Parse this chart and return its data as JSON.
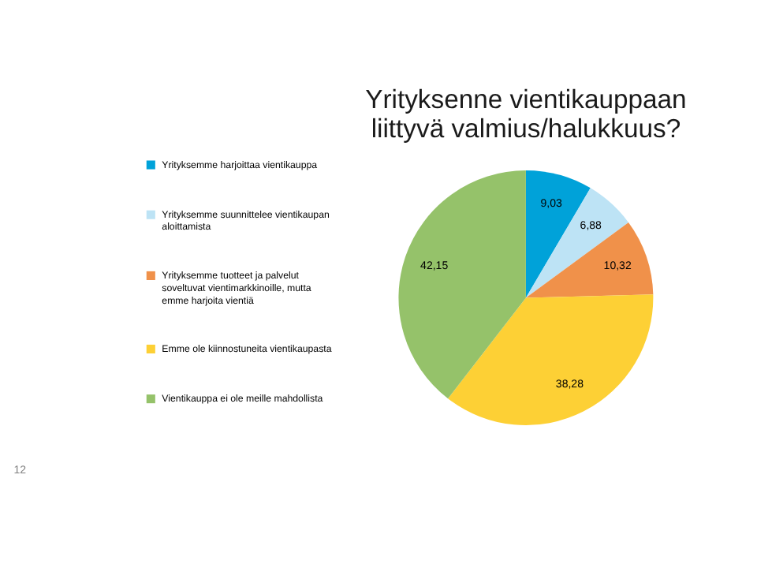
{
  "chart_data": {
    "type": "pie",
    "title": "Yrityksenne vientikauppaan liittyvä valmius/halukkuus?",
    "categories": [
      "Yrityksemme harjoittaa vientikauppa",
      "Yrityksemme suunnittelee vientikaupan aloittamista",
      "Yrityksemme tuotteet ja palvelut soveltuvat vientimarkkinoille, mutta emme harjoita vientiä",
      "Emme ole kiinnostuneita vientikaupasta",
      "Vientikauppa ei ole meille mahdollista"
    ],
    "values": [
      9.03,
      6.88,
      10.32,
      38.28,
      42.15
    ],
    "value_labels": [
      "9,03",
      "6,88",
      "10,32",
      "38,28",
      "42,15"
    ],
    "colors": [
      "#00a2d9",
      "#bde3f5",
      "#f0914a",
      "#fdd035",
      "#95c26a"
    ],
    "legend": "left",
    "annotations": [
      "12"
    ]
  }
}
